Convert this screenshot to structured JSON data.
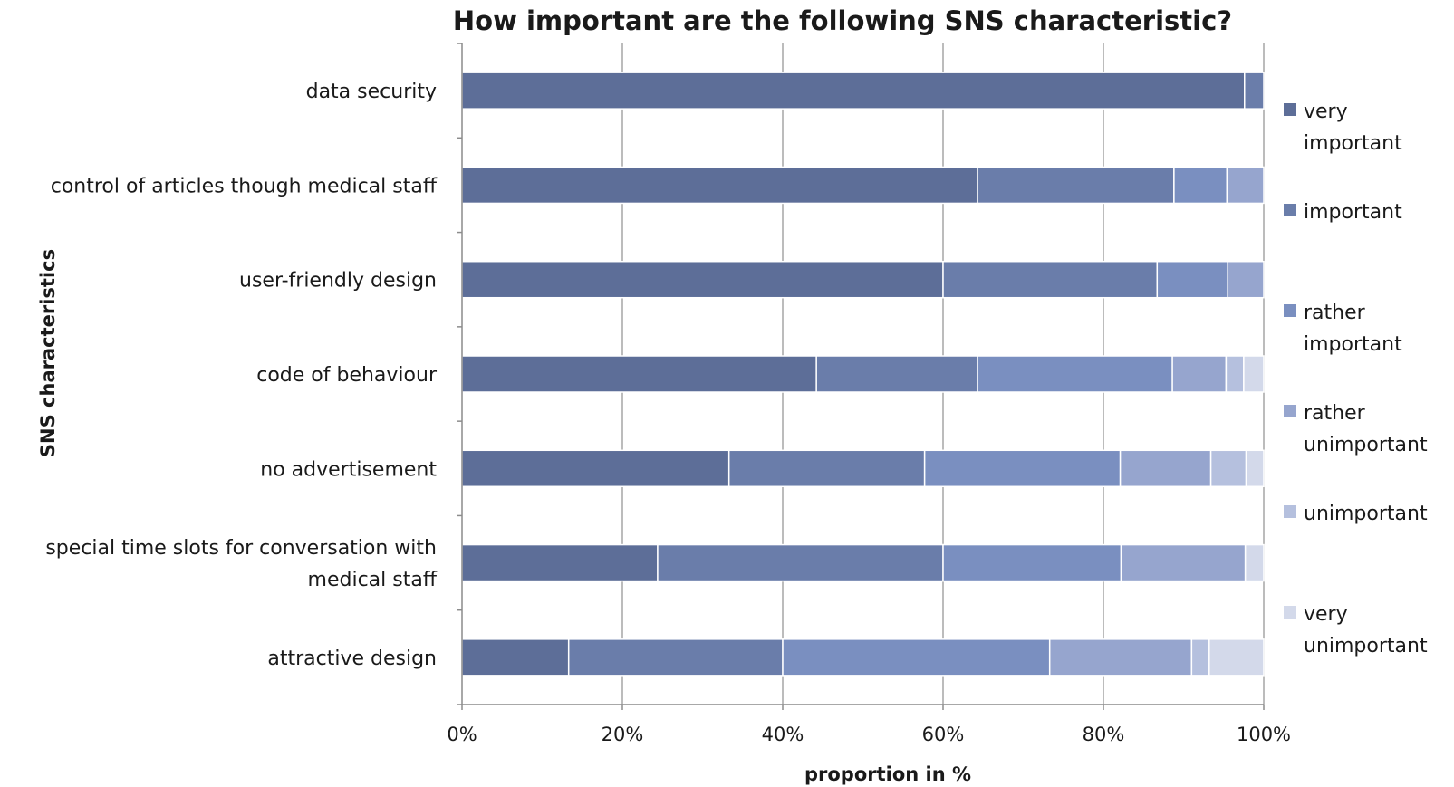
{
  "chart_data": {
    "type": "bar",
    "orientation": "horizontal",
    "stacked": "percent",
    "title": "How important are the following SNS characteristic?",
    "xlabel": "proportion in %",
    "ylabel": "SNS characteristics",
    "xlim": [
      0,
      100
    ],
    "x_ticks": [
      "0%",
      "20%",
      "40%",
      "60%",
      "80%",
      "100%"
    ],
    "grid": "vertical",
    "legend_position": "right",
    "categories": [
      [
        "data security"
      ],
      [
        "control of articles though medical staff"
      ],
      [
        "user-friendly design"
      ],
      [
        "code of behaviour"
      ],
      [
        "no advertisement"
      ],
      [
        "special time slots for conversation with",
        "medical staff"
      ],
      [
        "attractive design"
      ]
    ],
    "series": [
      {
        "name": [
          "very",
          "important"
        ],
        "color": "#5d6e98",
        "values": [
          97.6,
          64.3,
          60.0,
          44.2,
          33.3,
          24.4,
          13.3
        ]
      },
      {
        "name": [
          "important"
        ],
        "color": "#6a7daa",
        "values": [
          2.4,
          24.5,
          26.7,
          20.1,
          24.4,
          35.6,
          26.7
        ]
      },
      {
        "name": [
          "rather",
          "important"
        ],
        "color": "#7a8fc0",
        "values": [
          0,
          6.6,
          8.8,
          24.3,
          24.4,
          22.2,
          33.3
        ]
      },
      {
        "name": [
          "rather",
          "unimportant"
        ],
        "color": "#96a5ce",
        "values": [
          0,
          4.6,
          4.5,
          6.7,
          11.3,
          15.5,
          17.7
        ]
      },
      {
        "name": [
          "unimportant"
        ],
        "color": "#b5c0de",
        "values": [
          0,
          0,
          0,
          2.2,
          4.4,
          0,
          2.2
        ]
      },
      {
        "name": [
          "very",
          "unimportant"
        ],
        "color": "#d3d9ea",
        "values": [
          0,
          0,
          0,
          2.5,
          2.2,
          2.3,
          6.8
        ]
      }
    ]
  }
}
